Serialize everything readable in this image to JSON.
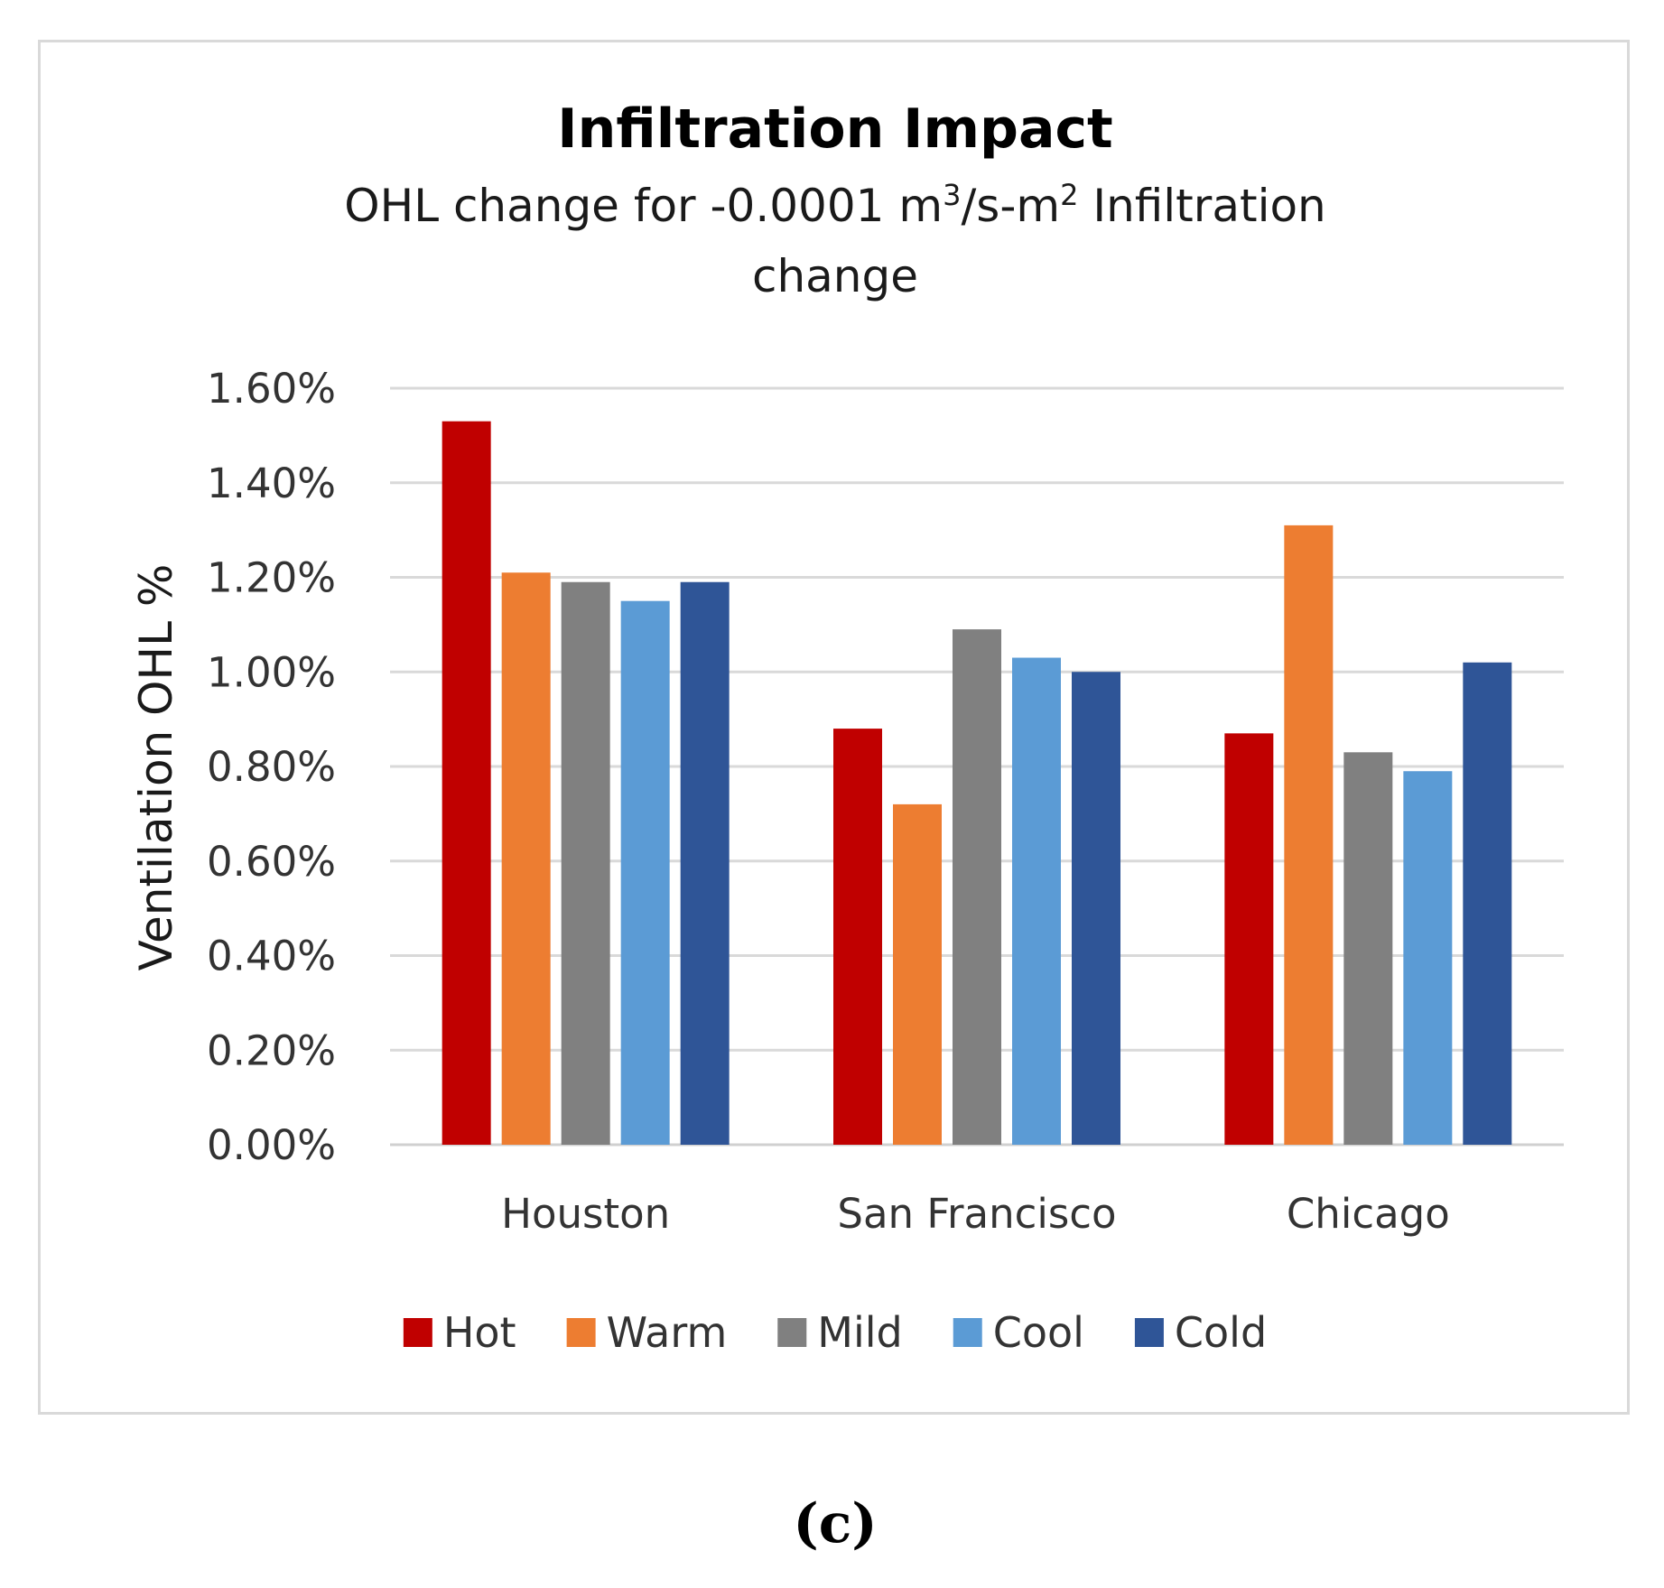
{
  "chart_data": {
    "type": "bar",
    "title": "Infiltration Impact",
    "subtitle": {
      "prefix": "OHL change for -0.0001 m",
      "sup1": "3",
      "middle": "/s-m",
      "sup2": "2",
      "suffix": " Infiltration",
      "line2": "change"
    },
    "ylabel": "Ventilation OHL %",
    "xlabel": "",
    "ylim": [
      0,
      1.6
    ],
    "yticks": [
      0,
      0.2,
      0.4,
      0.6,
      0.8,
      1.0,
      1.2,
      1.4,
      1.6
    ],
    "ytick_labels": [
      "0.00%",
      "0.20%",
      "0.40%",
      "0.60%",
      "0.80%",
      "1.00%",
      "1.20%",
      "1.40%",
      "1.60%"
    ],
    "grid": true,
    "legend_position": "bottom",
    "categories": [
      "Houston",
      "San Francisco",
      "Chicago"
    ],
    "series": [
      {
        "name": "Hot",
        "color": "#c00000",
        "values": [
          1.53,
          0.88,
          0.87
        ]
      },
      {
        "name": "Warm",
        "color": "#ed7d31",
        "values": [
          1.21,
          0.72,
          1.31
        ]
      },
      {
        "name": "Mild",
        "color": "#808080",
        "values": [
          1.19,
          1.09,
          0.83
        ]
      },
      {
        "name": "Cool",
        "color": "#5b9bd5",
        "values": [
          1.15,
          1.03,
          0.79
        ]
      },
      {
        "name": "Cold",
        "color": "#2f5597",
        "values": [
          1.19,
          1.0,
          1.02
        ]
      }
    ],
    "unit": "%"
  },
  "panel_label": "(c)"
}
